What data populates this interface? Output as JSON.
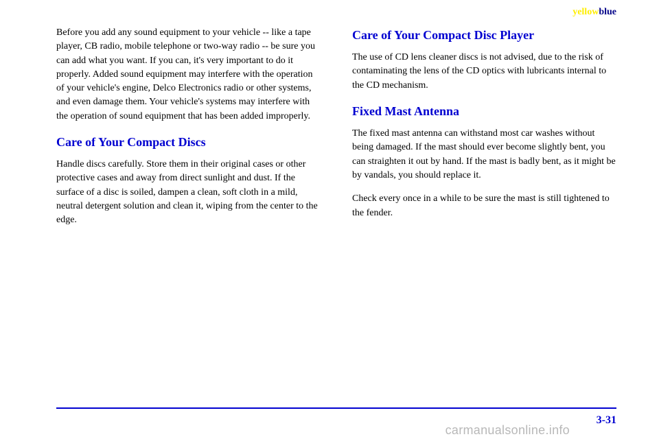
{
  "header": {
    "yellow_word": "yellow",
    "blue_word": "blue"
  },
  "left_column": {
    "intro_para": "Before you add any sound equipment to your vehicle -- like a tape player, CB radio, mobile telephone or two-way radio -- be sure you can add what you want. If you can, it's very important to do it properly. Added sound equipment may interfere with the operation of your vehicle's engine, Delco Electronics radio or other systems, and even damage them. Your vehicle's systems may interfere with the operation of sound equipment that has been added improperly.",
    "discs_title": "Care of Your Compact Discs",
    "discs_para": "Handle discs carefully. Store them in their original cases or other protective cases and away from direct sunlight and dust. If the surface of a disc is soiled, dampen a clean, soft cloth in a mild, neutral detergent solution and clean it, wiping from the center to the edge."
  },
  "right_column": {
    "player_title": "Care of Your Compact Disc Player",
    "player_para": "The use of CD lens cleaner discs is not advised, due to the risk of contaminating the lens of the CD optics with lubricants internal to the CD mechanism.",
    "antenna_title": "Fixed Mast Antenna",
    "antenna_para1": "The fixed mast antenna can withstand most car washes without being damaged. If the mast should ever become slightly bent, you can straighten it out by hand. If the mast is badly bent, as it might be by vandals, you should replace it.",
    "antenna_para2": "Check every once in a while to be sure the mast is still tightened to the fender."
  },
  "footer": {
    "page_number": "3-31",
    "watermark": "carmanualsonline.info"
  },
  "colors": {
    "heading_blue": "#0000d0",
    "yellow": "#ffee00",
    "dark_blue": "#000088",
    "text_black": "#000000",
    "watermark_gray": "#b8b8b8",
    "background": "#ffffff"
  }
}
